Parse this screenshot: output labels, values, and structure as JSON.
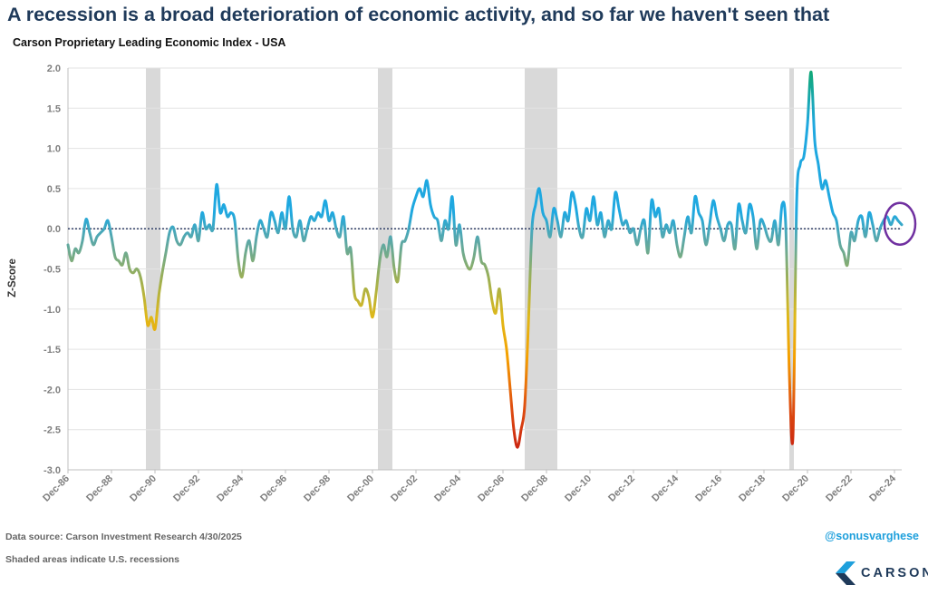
{
  "headline": "A recession is a broad deterioration of economic activity, and so far we haven't seen that",
  "footer": {
    "source": "Data source: Carson Investment Research  4/30/2025",
    "shading_note": "Shaded areas indicate U.S. recessions",
    "handle": "@sonusvarghese",
    "brand": "CARSON"
  },
  "colors": {
    "headline": "#1f3a5a",
    "handle": "#1fa0dc",
    "recession_shade": "#d9d9d9",
    "zero_line": "#1f2f5a",
    "highlight_circle": "#7030a0",
    "line_high": "#1fa8e0",
    "line_peak": "#10a870",
    "line_low": "#c81e14",
    "line_mid": "#f0b800"
  },
  "chart_data": {
    "type": "line",
    "title": "Carson Proprietary Leading Economic Index - USA",
    "xlabel": "",
    "ylabel": "Z-Score",
    "ylim": [
      -3.0,
      2.0
    ],
    "yticks": [
      "2.0",
      "1.5",
      "1.0",
      "0.5",
      "0.0",
      "-0.5",
      "-1.0",
      "-1.5",
      "-2.0",
      "-2.5",
      "-3.0"
    ],
    "xticks": [
      "Dec-86",
      "Dec-88",
      "Dec-90",
      "Dec-92",
      "Dec-94",
      "Dec-96",
      "Dec-98",
      "Dec-00",
      "Dec-02",
      "Dec-04",
      "Dec-06",
      "Dec-08",
      "Dec-10",
      "Dec-12",
      "Dec-14",
      "Dec-16",
      "Dec-18",
      "Dec-20",
      "Dec-22",
      "Dec-24"
    ],
    "xrange": [
      "Dec-86",
      "Apr-25"
    ],
    "grid": "horizontal",
    "legend": "none",
    "color_scale": "line color shifts from red (most negative) through yellow to blue near zero and green at the highest readings",
    "annotation": "circle highlighting latest reading",
    "recessions": [
      {
        "start": "Jul-90",
        "end": "Mar-91"
      },
      {
        "start": "Mar-01",
        "end": "Nov-01"
      },
      {
        "start": "Dec-07",
        "end": "Jun-09"
      },
      {
        "start": "Feb-20",
        "end": "Apr-20"
      }
    ],
    "series": [
      {
        "values": [
          [
            "Dec-86",
            -0.2
          ],
          [
            "Feb-87",
            -0.4
          ],
          [
            "Apr-87",
            -0.25
          ],
          [
            "Jun-87",
            -0.3
          ],
          [
            "Aug-87",
            -0.15
          ],
          [
            "Oct-87",
            0.12
          ],
          [
            "Dec-87",
            -0.05
          ],
          [
            "Feb-88",
            -0.2
          ],
          [
            "Apr-88",
            -0.1
          ],
          [
            "Jun-88",
            -0.05
          ],
          [
            "Aug-88",
            0.0
          ],
          [
            "Oct-88",
            0.1
          ],
          [
            "Dec-88",
            -0.1
          ],
          [
            "Feb-89",
            -0.35
          ],
          [
            "Apr-89",
            -0.4
          ],
          [
            "Jun-89",
            -0.45
          ],
          [
            "Aug-89",
            -0.3
          ],
          [
            "Oct-89",
            -0.5
          ],
          [
            "Dec-89",
            -0.55
          ],
          [
            "Feb-90",
            -0.5
          ],
          [
            "Apr-90",
            -0.6
          ],
          [
            "Jun-90",
            -0.85
          ],
          [
            "Aug-90",
            -1.2
          ],
          [
            "Oct-90",
            -1.1
          ],
          [
            "Dec-90",
            -1.25
          ],
          [
            "Feb-91",
            -0.85
          ],
          [
            "Apr-91",
            -0.55
          ],
          [
            "Jun-91",
            -0.3
          ],
          [
            "Aug-91",
            -0.05
          ],
          [
            "Oct-91",
            0.02
          ],
          [
            "Dec-91",
            -0.15
          ],
          [
            "Feb-92",
            -0.2
          ],
          [
            "Apr-92",
            -0.1
          ],
          [
            "Jun-92",
            -0.05
          ],
          [
            "Aug-92",
            -0.1
          ],
          [
            "Oct-92",
            0.05
          ],
          [
            "Dec-92",
            -0.15
          ],
          [
            "Feb-93",
            0.2
          ],
          [
            "Apr-93",
            0.0
          ],
          [
            "Jun-93",
            0.05
          ],
          [
            "Aug-93",
            0.0
          ],
          [
            "Oct-93",
            0.55
          ],
          [
            "Dec-93",
            0.2
          ],
          [
            "Feb-94",
            0.3
          ],
          [
            "Apr-94",
            0.15
          ],
          [
            "Jun-94",
            0.2
          ],
          [
            "Aug-94",
            0.1
          ],
          [
            "Oct-94",
            -0.4
          ],
          [
            "Dec-94",
            -0.6
          ],
          [
            "Feb-95",
            -0.3
          ],
          [
            "Apr-95",
            -0.15
          ],
          [
            "Jun-95",
            -0.4
          ],
          [
            "Aug-95",
            -0.1
          ],
          [
            "Oct-95",
            0.1
          ],
          [
            "Dec-95",
            0.0
          ],
          [
            "Feb-96",
            -0.1
          ],
          [
            "Apr-96",
            0.2
          ],
          [
            "Jun-96",
            0.1
          ],
          [
            "Aug-96",
            -0.05
          ],
          [
            "Oct-96",
            0.2
          ],
          [
            "Dec-96",
            0.0
          ],
          [
            "Feb-97",
            0.4
          ],
          [
            "Apr-97",
            0.0
          ],
          [
            "Jun-97",
            -0.1
          ],
          [
            "Aug-97",
            0.1
          ],
          [
            "Oct-97",
            -0.15
          ],
          [
            "Dec-97",
            0.0
          ],
          [
            "Feb-98",
            0.15
          ],
          [
            "Apr-98",
            0.1
          ],
          [
            "Jun-98",
            0.2
          ],
          [
            "Aug-98",
            0.15
          ],
          [
            "Oct-98",
            0.35
          ],
          [
            "Dec-98",
            0.1
          ],
          [
            "Feb-99",
            0.2
          ],
          [
            "Apr-99",
            0.0
          ],
          [
            "Jun-99",
            -0.1
          ],
          [
            "Aug-99",
            0.15
          ],
          [
            "Oct-99",
            -0.3
          ],
          [
            "Dec-99",
            -0.25
          ],
          [
            "Feb-00",
            -0.8
          ],
          [
            "Apr-00",
            -0.9
          ],
          [
            "Jun-00",
            -0.95
          ],
          [
            "Aug-00",
            -0.75
          ],
          [
            "Oct-00",
            -0.85
          ],
          [
            "Dec-00",
            -1.1
          ],
          [
            "Feb-01",
            -0.8
          ],
          [
            "Apr-01",
            -0.4
          ],
          [
            "Jun-01",
            -0.2
          ],
          [
            "Aug-01",
            -0.35
          ],
          [
            "Oct-01",
            -0.1
          ],
          [
            "Dec-01",
            -0.5
          ],
          [
            "Feb-02",
            -0.65
          ],
          [
            "Apr-02",
            -0.2
          ],
          [
            "Jun-02",
            -0.15
          ],
          [
            "Aug-02",
            0.0
          ],
          [
            "Oct-02",
            0.25
          ],
          [
            "Dec-02",
            0.4
          ],
          [
            "Feb-03",
            0.5
          ],
          [
            "Apr-03",
            0.4
          ],
          [
            "Jun-03",
            0.6
          ],
          [
            "Aug-03",
            0.3
          ],
          [
            "Oct-03",
            0.15
          ],
          [
            "Dec-03",
            0.1
          ],
          [
            "Feb-04",
            -0.15
          ],
          [
            "Apr-04",
            0.1
          ],
          [
            "Jun-04",
            0.0
          ],
          [
            "Aug-04",
            0.4
          ],
          [
            "Oct-04",
            -0.2
          ],
          [
            "Dec-04",
            0.05
          ],
          [
            "Feb-05",
            -0.3
          ],
          [
            "Apr-05",
            -0.45
          ],
          [
            "Jun-05",
            -0.5
          ],
          [
            "Aug-05",
            -0.35
          ],
          [
            "Oct-05",
            -0.1
          ],
          [
            "Dec-05",
            -0.4
          ],
          [
            "Feb-06",
            -0.45
          ],
          [
            "Apr-06",
            -0.6
          ],
          [
            "Jun-06",
            -0.9
          ],
          [
            "Aug-06",
            -1.05
          ],
          [
            "Oct-06",
            -0.75
          ],
          [
            "Dec-06",
            -1.2
          ],
          [
            "Feb-07",
            -1.5
          ],
          [
            "Apr-07",
            -2.0
          ],
          [
            "Jun-07",
            -2.5
          ],
          [
            "Aug-07",
            -2.72
          ],
          [
            "Oct-07",
            -2.5
          ],
          [
            "Dec-07",
            -2.2
          ],
          [
            "Feb-08",
            -1.2
          ],
          [
            "Apr-08",
            0.0
          ],
          [
            "Jun-08",
            0.3
          ],
          [
            "Aug-08",
            0.5
          ],
          [
            "Oct-08",
            0.2
          ],
          [
            "Dec-08",
            0.1
          ],
          [
            "Feb-09",
            -0.1
          ],
          [
            "Apr-09",
            0.25
          ],
          [
            "Jun-09",
            0.1
          ],
          [
            "Aug-09",
            -0.1
          ],
          [
            "Oct-09",
            0.2
          ],
          [
            "Dec-09",
            0.1
          ],
          [
            "Feb-10",
            0.45
          ],
          [
            "Apr-10",
            0.3
          ],
          [
            "Jun-10",
            0.0
          ],
          [
            "Aug-10",
            -0.1
          ],
          [
            "Oct-10",
            0.25
          ],
          [
            "Dec-10",
            0.1
          ],
          [
            "Feb-11",
            0.4
          ],
          [
            "Apr-11",
            0.05
          ],
          [
            "Jun-11",
            0.2
          ],
          [
            "Aug-11",
            -0.1
          ],
          [
            "Oct-11",
            0.1
          ],
          [
            "Dec-11",
            0.0
          ],
          [
            "Feb-12",
            0.45
          ],
          [
            "Apr-12",
            0.25
          ],
          [
            "Jun-12",
            0.05
          ],
          [
            "Aug-12",
            0.1
          ],
          [
            "Oct-12",
            -0.05
          ],
          [
            "Dec-12",
            0.0
          ],
          [
            "Feb-13",
            -0.2
          ],
          [
            "Apr-13",
            0.0
          ],
          [
            "Jun-13",
            0.1
          ],
          [
            "Aug-13",
            -0.3
          ],
          [
            "Oct-13",
            0.35
          ],
          [
            "Dec-13",
            0.15
          ],
          [
            "Feb-14",
            0.25
          ],
          [
            "Apr-14",
            -0.1
          ],
          [
            "Jun-14",
            0.05
          ],
          [
            "Aug-14",
            -0.05
          ],
          [
            "Oct-14",
            0.1
          ],
          [
            "Dec-14",
            -0.2
          ],
          [
            "Feb-15",
            -0.35
          ],
          [
            "Apr-15",
            -0.1
          ],
          [
            "Jun-15",
            0.15
          ],
          [
            "Aug-15",
            -0.05
          ],
          [
            "Oct-15",
            0.4
          ],
          [
            "Dec-15",
            0.2
          ],
          [
            "Feb-16",
            0.1
          ],
          [
            "Apr-16",
            -0.2
          ],
          [
            "Jun-16",
            0.05
          ],
          [
            "Aug-16",
            0.35
          ],
          [
            "Oct-16",
            0.15
          ],
          [
            "Dec-16",
            0.0
          ],
          [
            "Feb-17",
            -0.15
          ],
          [
            "Apr-17",
            0.05
          ],
          [
            "Jun-17",
            0.05
          ],
          [
            "Aug-17",
            -0.25
          ],
          [
            "Oct-17",
            0.3
          ],
          [
            "Dec-17",
            0.1
          ],
          [
            "Feb-18",
            -0.05
          ],
          [
            "Apr-18",
            0.3
          ],
          [
            "Jun-18",
            0.15
          ],
          [
            "Aug-18",
            -0.25
          ],
          [
            "Oct-18",
            0.1
          ],
          [
            "Dec-18",
            0.05
          ],
          [
            "Feb-19",
            -0.1
          ],
          [
            "Apr-19",
            -0.15
          ],
          [
            "Jun-19",
            0.1
          ],
          [
            "Aug-19",
            -0.2
          ],
          [
            "Oct-19",
            0.3
          ],
          [
            "Dec-19",
            0.05
          ],
          [
            "Feb-20",
            -1.8
          ],
          [
            "Apr-20",
            -2.58
          ],
          [
            "Jun-20",
            0.3
          ],
          [
            "Aug-20",
            0.8
          ],
          [
            "Oct-20",
            0.9
          ],
          [
            "Dec-20",
            1.3
          ],
          [
            "Feb-21",
            1.95
          ],
          [
            "Apr-21",
            1.1
          ],
          [
            "Jun-21",
            0.8
          ],
          [
            "Aug-21",
            0.5
          ],
          [
            "Oct-21",
            0.6
          ],
          [
            "Dec-21",
            0.4
          ],
          [
            "Feb-22",
            0.2
          ],
          [
            "Apr-22",
            0.1
          ],
          [
            "Jun-22",
            -0.2
          ],
          [
            "Aug-22",
            -0.3
          ],
          [
            "Oct-22",
            -0.45
          ],
          [
            "Dec-22",
            -0.05
          ],
          [
            "Feb-23",
            -0.15
          ],
          [
            "Apr-23",
            0.1
          ],
          [
            "Jun-23",
            0.15
          ],
          [
            "Aug-23",
            -0.1
          ],
          [
            "Oct-23",
            0.2
          ],
          [
            "Dec-23",
            0.05
          ],
          [
            "Feb-24",
            -0.15
          ],
          [
            "Apr-24",
            0.0
          ],
          [
            "Jun-24",
            0.1
          ],
          [
            "Aug-24",
            0.15
          ],
          [
            "Oct-24",
            0.05
          ],
          [
            "Dec-24",
            0.15
          ],
          [
            "Feb-25",
            0.1
          ],
          [
            "Apr-25",
            0.05
          ]
        ]
      }
    ]
  }
}
